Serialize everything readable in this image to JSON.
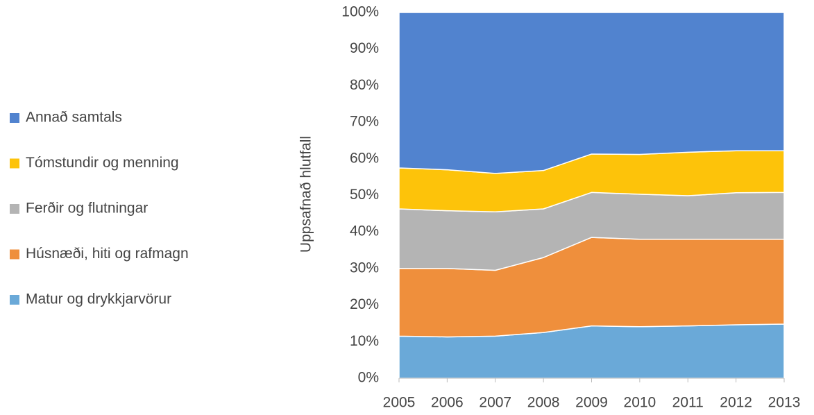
{
  "chart_data": {
    "type": "stacked_area",
    "ylabel": "Uppsafnað hlutfall",
    "categories": [
      "2005",
      "2006",
      "2007",
      "2008",
      "2009",
      "2010",
      "2011",
      "2012",
      "2013"
    ],
    "series": [
      {
        "name": "Matur og drykkjarvörur",
        "color": "#6aa9d8",
        "values": [
          11.5,
          11.3,
          11.5,
          12.5,
          14.3,
          14.1,
          14.3,
          14.6,
          14.8
        ]
      },
      {
        "name": "Húsnæði, hiti og rafmagn",
        "color": "#ef8f3c",
        "values": [
          18.5,
          18.7,
          18.0,
          20.5,
          24.2,
          23.9,
          23.7,
          23.4,
          23.2
        ]
      },
      {
        "name": "Ferðir og flutningar",
        "color": "#b4b4b4",
        "values": [
          16.3,
          15.8,
          16.0,
          13.3,
          12.3,
          12.3,
          11.9,
          12.7,
          12.8
        ]
      },
      {
        "name": "Tómstundir og menning",
        "color": "#fdc30a",
        "values": [
          11.2,
          11.2,
          10.5,
          10.5,
          10.5,
          10.9,
          11.9,
          11.5,
          11.4
        ]
      },
      {
        "name": "Annað samtals",
        "color": "#5183cf",
        "values": [
          42.5,
          43.0,
          44.0,
          43.2,
          38.7,
          38.8,
          38.2,
          37.8,
          37.8
        ]
      }
    ],
    "ylim": [
      0,
      100
    ],
    "yticks": [
      {
        "value": 0,
        "label": "0%"
      },
      {
        "value": 10,
        "label": "10%"
      },
      {
        "value": 20,
        "label": "20%"
      },
      {
        "value": 30,
        "label": "30%"
      },
      {
        "value": 40,
        "label": "40%"
      },
      {
        "value": 50,
        "label": "50%"
      },
      {
        "value": 60,
        "label": "60%"
      },
      {
        "value": 70,
        "label": "70%"
      },
      {
        "value": 80,
        "label": "80%"
      },
      {
        "value": 90,
        "label": "90%"
      },
      {
        "value": 100,
        "label": "100%"
      }
    ],
    "legend": "left"
  }
}
